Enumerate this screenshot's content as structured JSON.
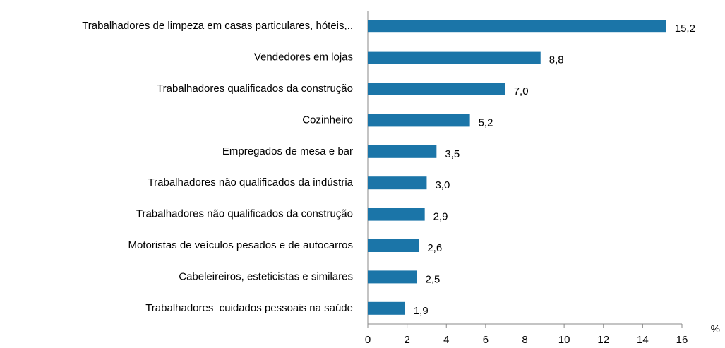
{
  "chart_data": {
    "type": "barh",
    "categories": [
      "Trabalhadores de limpeza em casas particulares, hóteis,..",
      "Vendedores em lojas",
      "Trabalhadores qualificados da construção",
      "Cozinheiro",
      "Empregados de mesa e bar",
      "Trabalhadores não qualificados da indústria",
      "Trabalhadores não qualificados da construção",
      "Motoristas de veículos pesados e de autocarros",
      "Cabeleireiros, esteticistas e similares",
      "Trabalhadores  cuidados pessoais na saúde"
    ],
    "values": [
      15.2,
      8.8,
      7.0,
      5.2,
      3.5,
      3.0,
      2.9,
      2.6,
      2.5,
      1.9
    ],
    "value_labels": [
      "15,2",
      "8,8",
      "7,0",
      "5,2",
      "3,5",
      "3,0",
      "2,9",
      "2,6",
      "2,5",
      "1,9"
    ],
    "color": "#1b75a8",
    "xlabel": "%",
    "xlim": [
      0,
      16
    ],
    "xticks": [
      0,
      2,
      4,
      6,
      8,
      10,
      12,
      14,
      16
    ],
    "grid": false
  }
}
